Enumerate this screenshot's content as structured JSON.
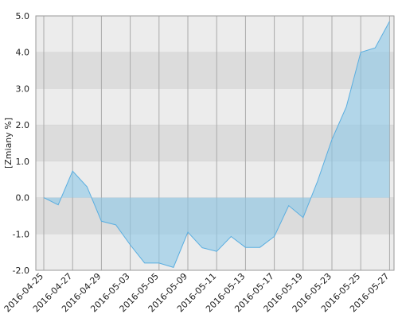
{
  "chart_data": {
    "type": "area",
    "y_label": "[Zmiany %]",
    "categories": [
      "2016-04-25",
      null,
      "2016-04-27",
      null,
      "2016-04-29",
      null,
      "2016-05-03",
      null,
      "2016-05-05",
      null,
      "2016-05-09",
      null,
      "2016-05-11",
      null,
      "2016-05-13",
      null,
      "2016-05-17",
      null,
      "2016-05-19",
      null,
      "2016-05-23",
      null,
      "2016-05-25",
      null,
      "2016-05-27"
    ],
    "values": [
      0,
      -0.2,
      0.73,
      0.3,
      -0.65,
      -0.75,
      -1.3,
      -1.8,
      -1.8,
      -1.92,
      -0.95,
      -1.38,
      -1.48,
      -1.07,
      -1.37,
      -1.37,
      -1.07,
      -0.22,
      -0.55,
      0.45,
      1.6,
      2.5,
      4.0,
      4.12,
      4.85
    ],
    "color": "#5aaee0",
    "ylim": [
      -2,
      5
    ],
    "yticks": [
      {
        "value": -2,
        "label": "-2.0"
      },
      {
        "value": -1,
        "label": "-1.0"
      },
      {
        "value": 0,
        "label": "0.0"
      },
      {
        "value": 1,
        "label": "1.0"
      },
      {
        "value": 2,
        "label": "2.0"
      },
      {
        "value": 3,
        "label": "3.0"
      },
      {
        "value": 4,
        "label": "4.0"
      },
      {
        "value": 5,
        "label": "5.0"
      }
    ],
    "grid": true
  }
}
